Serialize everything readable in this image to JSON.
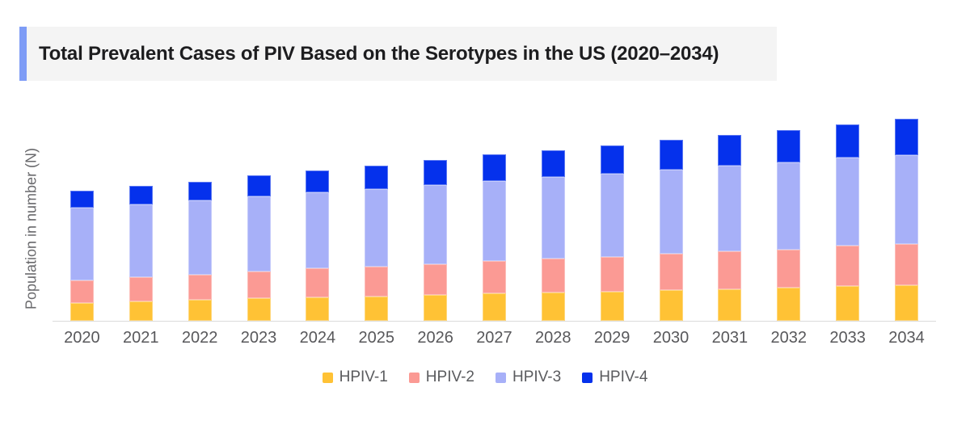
{
  "header": {
    "title": "Total Prevalent Cases of PIV Based on the Serotypes in the US (2020–2034)",
    "accent_color": "#7E9CF6",
    "background_color": "#F4F4F4"
  },
  "chart_data": {
    "type": "bar",
    "stacked": true,
    "title": "Total Prevalent Cases of PIV Based on the Serotypes in the US (2020–2034)",
    "xlabel": "",
    "ylabel": "Population in number (N)",
    "value_units": "relative stacked-bar heights (y-axis shows no numeric tick labels in source image)",
    "grid": false,
    "legend_position": "bottom-center",
    "axis_line_color": "#DBDBDB",
    "categories": [
      "2020",
      "2021",
      "2022",
      "2023",
      "2024",
      "2025",
      "2026",
      "2027",
      "2028",
      "2029",
      "2030",
      "2031",
      "2032",
      "2033",
      "2034"
    ],
    "series": [
      {
        "name": "HPIV-1",
        "color": "#FFC235",
        "values": [
          22,
          24,
          26,
          28,
          29,
          30,
          32,
          34,
          35,
          36,
          38,
          39,
          41,
          43,
          44
        ]
      },
      {
        "name": "HPIV-2",
        "color": "#FB9A94",
        "values": [
          28,
          30,
          31,
          33,
          36,
          37,
          38,
          40,
          42,
          43,
          45,
          47,
          47,
          50,
          51
        ]
      },
      {
        "name": "HPIV-3",
        "color": "#A7B0F8",
        "values": [
          90,
          90,
          92,
          93,
          94,
          96,
          98,
          99,
          101,
          103,
          104,
          106,
          108,
          109,
          110
        ]
      },
      {
        "name": "HPIV-4",
        "color": "#0531EC",
        "values": [
          21,
          23,
          23,
          26,
          27,
          29,
          31,
          33,
          33,
          35,
          37,
          38,
          40,
          41,
          45
        ]
      }
    ]
  }
}
